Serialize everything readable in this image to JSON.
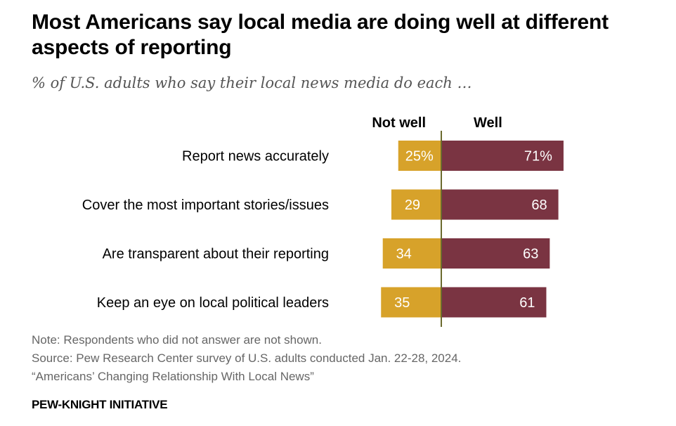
{
  "title": "Most Americans say local media are doing well at different aspects of reporting",
  "subtitle": "% of U.S. adults who say their local news media do each …",
  "chart_data": {
    "type": "bar",
    "orientation": "horizontal-diverging",
    "categories": [
      "Report news accurately",
      "Cover the most important stories/issues",
      "Are transparent about their reporting",
      "Keep an eye on local political leaders"
    ],
    "series": [
      {
        "name": "Not well",
        "values": [
          25,
          29,
          34,
          35
        ],
        "labels": [
          "25%",
          "29",
          "34",
          "35"
        ],
        "color": "#D7A22A"
      },
      {
        "name": "Well",
        "values": [
          71,
          68,
          63,
          61
        ],
        "labels": [
          "71%",
          "68",
          "63",
          "61"
        ],
        "color": "#7A3442"
      }
    ],
    "axis_color": "#6B6A2E"
  },
  "note": "Note: Respondents who did not answer are not shown.",
  "source": "Source: Pew Research Center survey of U.S. adults conducted Jan. 22-28, 2024.",
  "report": "“Americans’ Changing Relationship With Local News”",
  "footer": "PEW-KNIGHT INITIATIVE"
}
